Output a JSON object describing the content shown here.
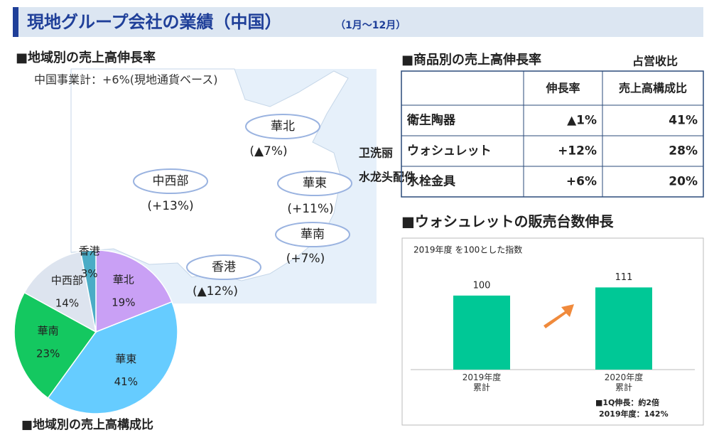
{
  "header": {
    "title": "現地グループ会社の業績（中国）",
    "period": "（1月～12月）"
  },
  "region_growth": {
    "title": "■地域別の売上高伸長率",
    "total": "中国事業計：+6%(現地通貨ベース)",
    "regions": [
      {
        "name": "華北",
        "growth": "(▲7%)"
      },
      {
        "name": "中西部",
        "growth": "(+13%)"
      },
      {
        "name": "華東",
        "growth": "(+11%)"
      },
      {
        "name": "華南",
        "growth": "(+7%)"
      },
      {
        "name": "香港",
        "growth": "(▲12%)"
      }
    ]
  },
  "product_table": {
    "title": "■商品別の売上高伸長率",
    "overlay_notes": [
      "占営收比",
      "卫洗丽",
      "水龙头配件"
    ],
    "header": [
      "伸長率",
      "売上高構成比"
    ],
    "rows": [
      [
        "衛生陶器",
        "▲1%",
        "41%"
      ],
      [
        "ウォシュレット",
        "+12%",
        "28%"
      ],
      [
        "水栓金具",
        "+6%",
        "20%"
      ]
    ]
  },
  "chart_data": [
    {
      "type": "pie",
      "title": "■地域別の売上高構成比",
      "categories": [
        "華北",
        "華東",
        "華南",
        "中西部",
        "香港"
      ],
      "values": [
        19,
        41,
        23,
        14,
        3
      ],
      "value_labels": [
        "19%",
        "41%",
        "23%",
        "14%",
        "3%"
      ],
      "colors": [
        "#c9a0f5",
        "#66ccff",
        "#14c860",
        "#dde4ef",
        "#4bacc6"
      ]
    },
    {
      "type": "bar",
      "title": "■ウォシュレットの販売台数伸長",
      "subtitle": "2019年度 を100とした指数",
      "categories": [
        "2019年度\n累計",
        "2020年度\n累計"
      ],
      "values": [
        100,
        111
      ],
      "color": "#00c896",
      "ylim": [
        0,
        120
      ],
      "annotations": [
        "■1Q伸長：約2倍",
        "2019年度：142%"
      ]
    }
  ]
}
